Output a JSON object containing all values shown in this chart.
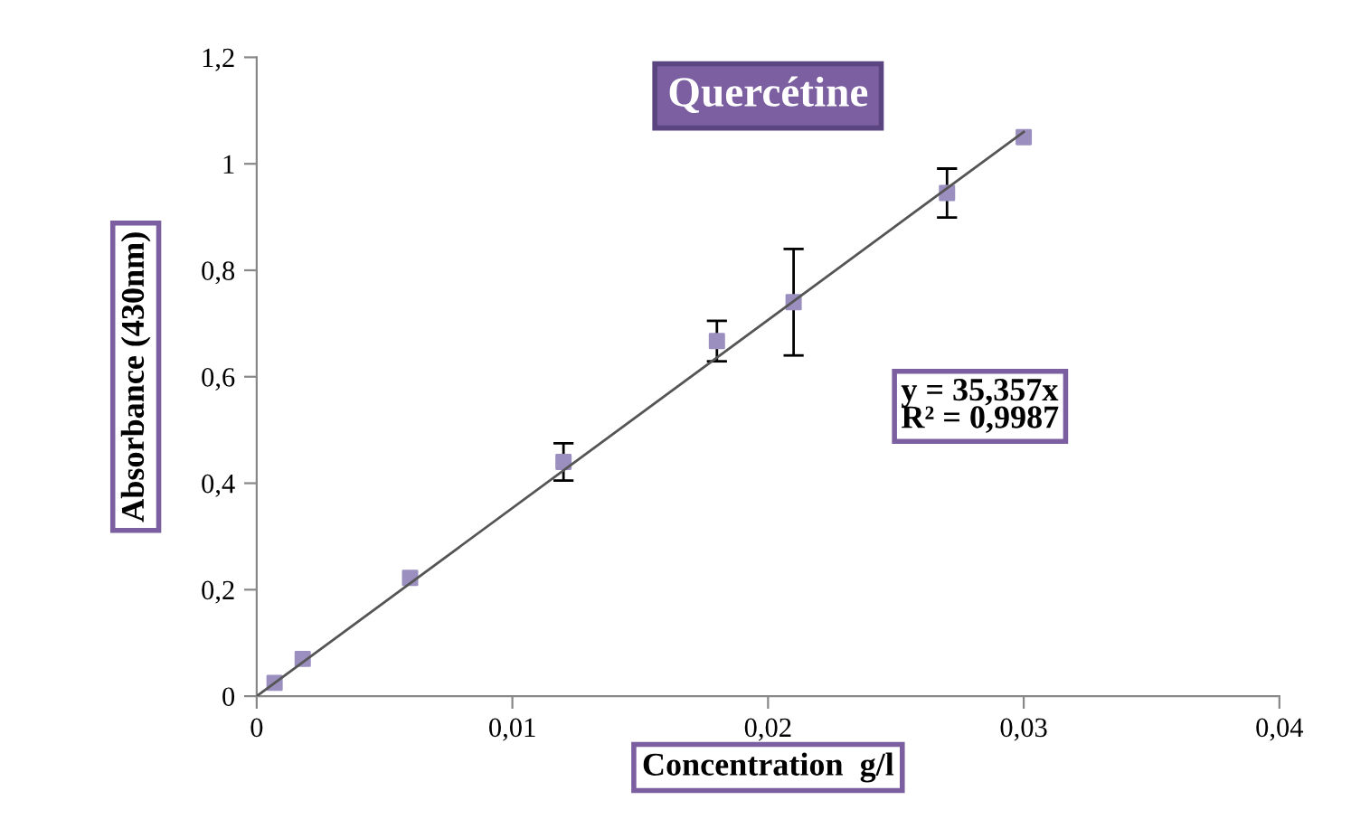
{
  "chart_data": {
    "type": "scatter",
    "title": "Quercétine",
    "xlabel": "Concentration  g/l",
    "ylabel": "Absorbance (430nm)",
    "annotations": [
      "y = 35,357x\nR² = 0,9987"
    ],
    "series": [
      {
        "color": "#9b8fc0",
        "marker": "square",
        "x": [
          0.0007,
          0.0018,
          0.006,
          0.012,
          0.018,
          0.021,
          0.027,
          0.03
        ],
        "values": [
          0.025,
          0.07,
          0.222,
          0.44,
          0.667,
          0.74,
          0.945,
          1.05
        ],
        "errors": [
          null,
          null,
          null,
          0.035,
          0.038,
          0.1,
          0.046,
          null
        ]
      },
      {
        "type": "line",
        "color": "#555555",
        "marker": "none",
        "x": [
          0,
          0.03
        ],
        "values": [
          0,
          1.06
        ]
      }
    ],
    "xlim": [
      0,
      0.04
    ],
    "ylim": [
      0,
      1.2
    ],
    "xticks": [
      0,
      {
        "value": 0.01,
        "label": "0,01"
      },
      {
        "value": 0.02,
        "label": "0,02"
      },
      {
        "value": 0.03,
        "label": "0,03"
      },
      {
        "value": 0.04,
        "label": "0,04"
      }
    ],
    "yticks": [
      0,
      {
        "value": 0.2,
        "label": "0,2"
      },
      {
        "value": 0.4,
        "label": "0,4"
      },
      {
        "value": 0.6,
        "label": "0,6"
      },
      {
        "value": 0.8,
        "label": "0,8"
      },
      {
        "value": 1,
        "label": "1"
      },
      {
        "value": 1.2,
        "label": "1,2"
      }
    ],
    "grid": false,
    "legend": false
  }
}
